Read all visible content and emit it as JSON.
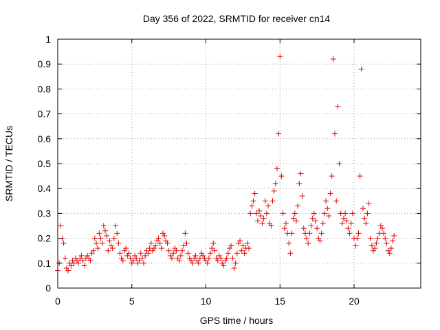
{
  "chart_data": {
    "type": "scatter",
    "title": "Day 356 of 2022, SRMTID for receiver cn14",
    "xlabel": "GPS time / hours",
    "ylabel": "SRMTID / TECUs",
    "xlim": [
      0,
      24.5
    ],
    "ylim": [
      0,
      1
    ],
    "xticks": [
      0,
      5,
      10,
      15,
      20
    ],
    "xtick_labels": [
      "0",
      "5",
      "10",
      "15",
      "20"
    ],
    "yticks": [
      0,
      0.1,
      0.2,
      0.3,
      0.4,
      0.5,
      0.6,
      0.7,
      0.8,
      0.9,
      1
    ],
    "ytick_labels": [
      "0",
      "0.1",
      "0.2",
      "0.3",
      "0.4",
      "0.5",
      "0.6",
      "0.7",
      "0.8",
      "0.9",
      "1"
    ],
    "grid": true,
    "marker": "+",
    "series_color": "#e00000",
    "series": [
      {
        "name": "SRMTID",
        "x": [
          0.0,
          0.1,
          0.2,
          0.3,
          0.4,
          0.5,
          0.6,
          0.7,
          0.8,
          0.9,
          1.0,
          1.1,
          1.2,
          1.3,
          1.4,
          1.5,
          1.6,
          1.7,
          1.8,
          1.9,
          2.0,
          2.1,
          2.2,
          2.3,
          2.4,
          2.5,
          2.6,
          2.7,
          2.8,
          2.9,
          3.0,
          3.1,
          3.2,
          3.3,
          3.4,
          3.5,
          3.6,
          3.7,
          3.8,
          3.9,
          4.0,
          4.1,
          4.2,
          4.3,
          4.4,
          4.5,
          4.6,
          4.7,
          4.8,
          4.9,
          5.0,
          5.1,
          5.2,
          5.3,
          5.4,
          5.5,
          5.6,
          5.7,
          5.8,
          5.9,
          6.0,
          6.1,
          6.2,
          6.3,
          6.4,
          6.5,
          6.6,
          6.7,
          6.8,
          6.9,
          7.0,
          7.1,
          7.2,
          7.3,
          7.4,
          7.5,
          7.6,
          7.7,
          7.8,
          7.9,
          8.0,
          8.1,
          8.2,
          8.3,
          8.4,
          8.5,
          8.6,
          8.7,
          8.8,
          8.9,
          9.0,
          9.1,
          9.2,
          9.3,
          9.4,
          9.5,
          9.6,
          9.7,
          9.8,
          9.9,
          10.0,
          10.1,
          10.2,
          10.3,
          10.4,
          10.5,
          10.6,
          10.7,
          10.8,
          10.9,
          11.0,
          11.1,
          11.2,
          11.3,
          11.4,
          11.5,
          11.6,
          11.7,
          11.8,
          11.9,
          12.0,
          12.1,
          12.2,
          12.3,
          12.4,
          12.5,
          12.6,
          12.7,
          12.8,
          12.9,
          13.0,
          13.1,
          13.2,
          13.3,
          13.4,
          13.5,
          13.6,
          13.7,
          13.8,
          13.9,
          14.0,
          14.1,
          14.2,
          14.3,
          14.4,
          14.5,
          14.6,
          14.7,
          14.8,
          14.9,
          15.0,
          15.1,
          15.2,
          15.3,
          15.4,
          15.5,
          15.6,
          15.7,
          15.8,
          15.9,
          16.0,
          16.1,
          16.2,
          16.3,
          16.4,
          16.5,
          16.6,
          16.7,
          16.8,
          16.9,
          17.0,
          17.1,
          17.2,
          17.3,
          17.4,
          17.5,
          17.6,
          17.7,
          17.8,
          17.9,
          18.0,
          18.1,
          18.2,
          18.3,
          18.4,
          18.5,
          18.6,
          18.7,
          18.8,
          18.9,
          19.0,
          19.1,
          19.2,
          19.3,
          19.4,
          19.5,
          19.6,
          19.7,
          19.8,
          19.9,
          20.0,
          20.1,
          20.2,
          20.3,
          20.4,
          20.5,
          20.6,
          20.7,
          20.8,
          20.9,
          21.0,
          21.1,
          21.2,
          21.3,
          21.4,
          21.5,
          21.6,
          21.7,
          21.8,
          21.9,
          22.0,
          22.1,
          22.2,
          22.3,
          22.4,
          22.5,
          22.6,
          22.7
        ],
        "y": [
          0.07,
          0.1,
          0.25,
          0.2,
          0.18,
          0.12,
          0.08,
          0.07,
          0.1,
          0.09,
          0.11,
          0.1,
          0.12,
          0.11,
          0.1,
          0.12,
          0.13,
          0.11,
          0.09,
          0.12,
          0.13,
          0.12,
          0.11,
          0.14,
          0.15,
          0.2,
          0.18,
          0.16,
          0.22,
          0.2,
          0.18,
          0.25,
          0.23,
          0.21,
          0.15,
          0.19,
          0.17,
          0.16,
          0.2,
          0.25,
          0.22,
          0.18,
          0.14,
          0.12,
          0.11,
          0.15,
          0.16,
          0.13,
          0.14,
          0.12,
          0.1,
          0.11,
          0.13,
          0.12,
          0.1,
          0.11,
          0.14,
          0.12,
          0.1,
          0.13,
          0.15,
          0.14,
          0.16,
          0.18,
          0.15,
          0.16,
          0.17,
          0.19,
          0.2,
          0.18,
          0.16,
          0.22,
          0.21,
          0.19,
          0.18,
          0.15,
          0.13,
          0.12,
          0.14,
          0.16,
          0.15,
          0.12,
          0.11,
          0.13,
          0.15,
          0.17,
          0.22,
          0.18,
          0.14,
          0.12,
          0.11,
          0.1,
          0.12,
          0.13,
          0.11,
          0.1,
          0.12,
          0.14,
          0.13,
          0.12,
          0.11,
          0.1,
          0.12,
          0.14,
          0.16,
          0.18,
          0.15,
          0.12,
          0.11,
          0.13,
          0.12,
          0.1,
          0.09,
          0.11,
          0.12,
          0.14,
          0.16,
          0.17,
          0.12,
          0.08,
          0.1,
          0.14,
          0.18,
          0.19,
          0.15,
          0.17,
          0.14,
          0.16,
          0.18,
          0.16,
          0.3,
          0.33,
          0.35,
          0.38,
          0.3,
          0.27,
          0.31,
          0.29,
          0.26,
          0.28,
          0.35,
          0.3,
          0.33,
          0.26,
          0.25,
          0.35,
          0.39,
          0.42,
          0.48,
          0.62,
          0.93,
          0.45,
          0.3,
          0.24,
          0.26,
          0.22,
          0.18,
          0.14,
          0.22,
          0.28,
          0.3,
          0.27,
          0.33,
          0.42,
          0.46,
          0.37,
          0.24,
          0.22,
          0.2,
          0.18,
          0.22,
          0.25,
          0.28,
          0.3,
          0.27,
          0.24,
          0.2,
          0.19,
          0.22,
          0.26,
          0.3,
          0.35,
          0.32,
          0.29,
          0.38,
          0.45,
          0.92,
          0.62,
          0.35,
          0.73,
          0.5,
          0.3,
          0.26,
          0.28,
          0.3,
          0.27,
          0.24,
          0.22,
          0.26,
          0.3,
          0.2,
          0.17,
          0.2,
          0.22,
          0.45,
          0.88,
          0.32,
          0.28,
          0.26,
          0.3,
          0.34,
          0.2,
          0.17,
          0.15,
          0.16,
          0.18,
          0.2,
          0.22,
          0.25,
          0.24,
          0.22,
          0.2,
          0.18,
          0.15,
          0.14,
          0.16,
          0.19,
          0.21
        ]
      }
    ]
  }
}
